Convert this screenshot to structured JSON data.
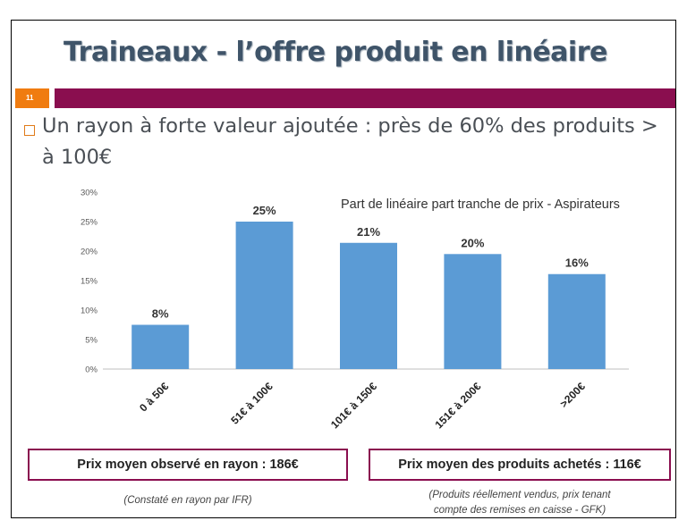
{
  "slide": {
    "title": "Traineaux - l’offre produit en linéaire",
    "number": "11",
    "bullet": "Un rayon à forte valeur ajoutée : près de 60% des produits > à 100€"
  },
  "chart_data": {
    "type": "bar",
    "title": "Part de linéaire part tranche de prix - Aspirateurs",
    "categories": [
      "0 à 50€",
      "51€ à 100€",
      "101€ à 150€",
      "151€ à 200€",
      ">200€"
    ],
    "values": [
      7.5,
      25,
      21.4,
      19.5,
      16.1
    ],
    "data_labels": [
      "8%",
      "25%",
      "21%",
      "20%",
      "16%"
    ],
    "ylim": [
      0,
      30
    ],
    "yticks": [
      0,
      5,
      10,
      15,
      20,
      25,
      30
    ],
    "ytick_labels": [
      "0%",
      "5%",
      "10%",
      "15%",
      "20%",
      "25%",
      "30%"
    ],
    "xlabel": "",
    "ylabel": "",
    "grid": false,
    "bar_color": "#5b9bd5"
  },
  "boxes": {
    "left": "Prix moyen observé en rayon : 186€",
    "right": "Prix moyen des produits achetés : 116€"
  },
  "notes": {
    "left": "(Constaté en rayon par IFR)",
    "right_line1": "(Produits réellement vendus, prix tenant",
    "right_line2": "compte des remises en caisse - GFK)"
  },
  "colors": {
    "title": "#3f5469",
    "accent_bar": "#8a0e4f",
    "slide_number_bg": "#f07c10",
    "bullet": "#e07b1a"
  }
}
